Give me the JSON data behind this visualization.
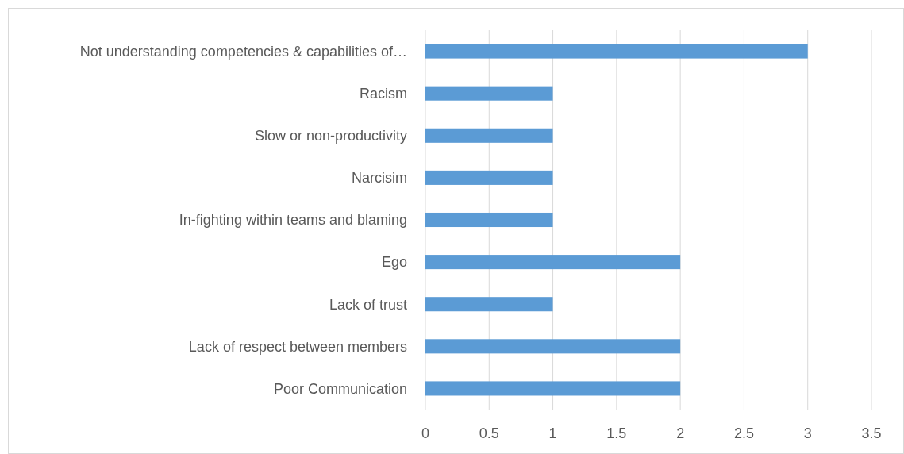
{
  "chart_data": {
    "type": "bar",
    "orientation": "horizontal",
    "categories": [
      "Not understanding competencies & capabilities of…",
      "Racism",
      "Slow or non-productivity",
      "Narcisim",
      "In-fighting within teams and blaming",
      "Ego",
      "Lack of trust",
      "Lack of respect between members",
      "Poor Communication"
    ],
    "values": [
      3,
      1,
      1,
      1,
      1,
      2,
      1,
      2,
      2
    ],
    "color": "#5b9bd5",
    "xlim": [
      0,
      3.5
    ],
    "xticks": [
      0,
      0.5,
      1,
      1.5,
      2,
      2.5,
      3,
      3.5
    ],
    "grid": "x"
  }
}
